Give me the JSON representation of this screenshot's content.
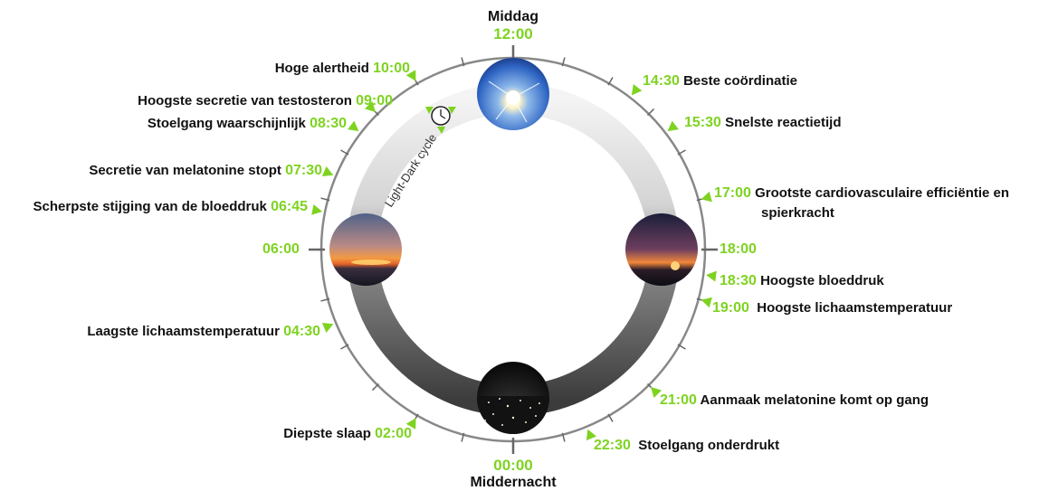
{
  "colors": {
    "accent": "#7ed321",
    "text": "#111111",
    "ring_light": "#f2f2f2",
    "ring_dark": "#404040"
  },
  "ring_label": "Light-Dark cycle",
  "top": {
    "name": "Middag",
    "time": "12:00"
  },
  "bottom": {
    "name": "Middernacht",
    "time": "00:00"
  },
  "left_time": "06:00",
  "right_time": "18:00",
  "events_left": [
    {
      "label": "Hoge alertheid",
      "time": "10:00"
    },
    {
      "label": "Hoogste secretie van testosteron",
      "time": "09:00"
    },
    {
      "label": "Stoelgang waarschijnlijk",
      "time": "08:30"
    },
    {
      "label": "Secretie van melatonine stopt",
      "time": "07:30"
    },
    {
      "label": "Scherpste stijging van de bloeddruk",
      "time": "06:45"
    },
    {
      "label": "Laagste lichaamstemperatuur",
      "time": "04:30"
    },
    {
      "label": "Diepste slaap",
      "time": "02:00"
    }
  ],
  "events_right": [
    {
      "label": "Beste coördinatie",
      "time": "14:30"
    },
    {
      "label": "Snelste reactietijd",
      "time": "15:30"
    },
    {
      "label": "Grootste cardiovasculaire efficiëntie en",
      "label2": "spierkracht",
      "time": "17:00"
    },
    {
      "label": "Hoogste bloeddruk",
      "time": "18:30"
    },
    {
      "label": "Hoogste lichaamstemperatuur",
      "time": "19:00"
    },
    {
      "label": "Aanmaak melatonine komt op gang",
      "time": "21:00"
    },
    {
      "label": "Stoelgang onderdrukt",
      "time": "22:30"
    }
  ],
  "icons": [
    "sun-photo-icon",
    "sunrise-photo-icon",
    "sunset-photo-icon",
    "night-photo-icon",
    "clock-icon"
  ]
}
